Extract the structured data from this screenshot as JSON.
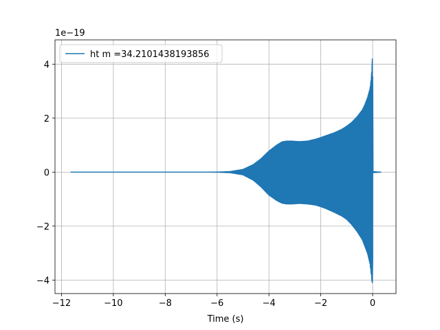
{
  "chart_data": {
    "type": "line",
    "xlabel": "Time (s)",
    "ylabel": "",
    "y_offset_label": "1e−19",
    "xlim": [
      -12.25,
      0.9
    ],
    "ylim": [
      -4.5e-19,
      4.9e-19
    ],
    "grid": true,
    "legend": {
      "placement": "top-left"
    },
    "x_ticks": [
      -12,
      -10,
      -8,
      -6,
      -4,
      -2,
      0
    ],
    "x_tick_labels": [
      "−12",
      "−10",
      "−8",
      "−6",
      "−4",
      "−2",
      "0"
    ],
    "y_ticks": [
      -4e-19,
      -2e-19,
      0,
      2e-19,
      4e-19
    ],
    "y_tick_labels": [
      "−4",
      "−2",
      "0",
      "2",
      "4"
    ],
    "series": [
      {
        "name": "ht m =34.2101438193856",
        "color": "#1f77b4",
        "time_range": [
          -11.65,
          0.33
        ],
        "upper_envelope": {
          "x": [
            -11.65,
            -7.0,
            -6.5,
            -6.0,
            -5.5,
            -5.0,
            -4.6,
            -4.3,
            -4.0,
            -3.7,
            -3.5,
            -3.3,
            -3.1,
            -3.0,
            -2.8,
            -2.5,
            -2.2,
            -2.0,
            -1.8,
            -1.5,
            -1.2,
            -1.0,
            -0.8,
            -0.6,
            -0.4,
            -0.3,
            -0.2,
            -0.1,
            -0.05,
            -0.02,
            0.0,
            0.01,
            0.33
          ],
          "y": [
            0,
            0,
            0,
            3e-22,
            2e-21,
            1e-20,
            2.8e-20,
            5e-20,
            7.8e-20,
            1e-19,
            1.12e-19,
            1.15e-19,
            1.15e-19,
            1.14e-19,
            1.13e-19,
            1.15e-19,
            1.22e-19,
            1.28e-19,
            1.35e-19,
            1.45e-19,
            1.58e-19,
            1.7e-19,
            1.85e-19,
            2.05e-19,
            2.3e-19,
            2.5e-19,
            2.75e-19,
            3.1e-19,
            3.5e-19,
            4e-19,
            4.45e-19,
            2e-21,
            0
          ]
        },
        "lower_envelope": {
          "x": [
            -11.65,
            -7.0,
            -6.5,
            -6.0,
            -5.5,
            -5.0,
            -4.6,
            -4.3,
            -4.0,
            -3.7,
            -3.5,
            -3.3,
            -3.1,
            -3.0,
            -2.8,
            -2.5,
            -2.2,
            -2.0,
            -1.8,
            -1.5,
            -1.2,
            -1.0,
            -0.8,
            -0.6,
            -0.4,
            -0.3,
            -0.2,
            -0.1,
            -0.05,
            -0.02,
            0.0,
            0.01,
            0.33
          ],
          "y": [
            0,
            0,
            0,
            -3e-22,
            -2e-21,
            -1e-20,
            -3e-20,
            -5.5e-20,
            -8.5e-20,
            -1.05e-19,
            -1.15e-19,
            -1.18e-19,
            -1.18e-19,
            -1.17e-19,
            -1.16e-19,
            -1.18e-19,
            -1.22e-19,
            -1.28e-19,
            -1.35e-19,
            -1.48e-19,
            -1.62e-19,
            -1.75e-19,
            -1.95e-19,
            -2.2e-19,
            -2.5e-19,
            -2.75e-19,
            -3e-19,
            -3.4e-19,
            -3.8e-19,
            -4.1e-19,
            -4.1e-19,
            -2e-21,
            0
          ]
        }
      }
    ]
  }
}
